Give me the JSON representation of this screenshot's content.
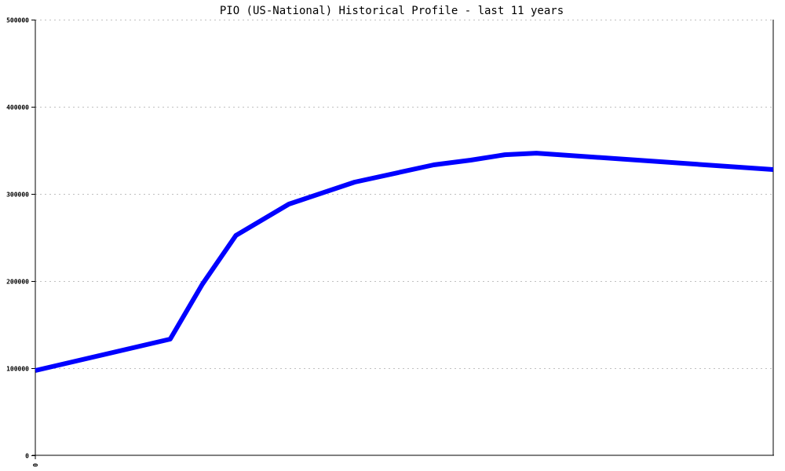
{
  "chart_data": {
    "type": "line",
    "title": "PIO (US-National) Historical Profile - last 11 years",
    "xlabel": "",
    "ylabel": "",
    "xlim": [
      0,
      11
    ],
    "ylim": [
      0,
      500000
    ],
    "x_tick_labels": [
      "0"
    ],
    "y_ticks": [
      0,
      100000,
      200000,
      300000,
      400000,
      500000
    ],
    "y_tick_labels": [
      "0",
      "100000",
      "200000",
      "300000",
      "400000",
      "500000"
    ],
    "grid": true,
    "legend": "none",
    "line_color": "#0000ff",
    "grid_color": "#c0c0c0",
    "series": [
      {
        "x": [
          0,
          2.01,
          2.49,
          2.99,
          3.78,
          4.76,
          5.94,
          6.49,
          7.0,
          7.47,
          11
        ],
        "values": [
          97300,
          133300,
          196400,
          252300,
          288300,
          313500,
          333300,
          338700,
          345000,
          346800,
          327900
        ]
      }
    ]
  }
}
